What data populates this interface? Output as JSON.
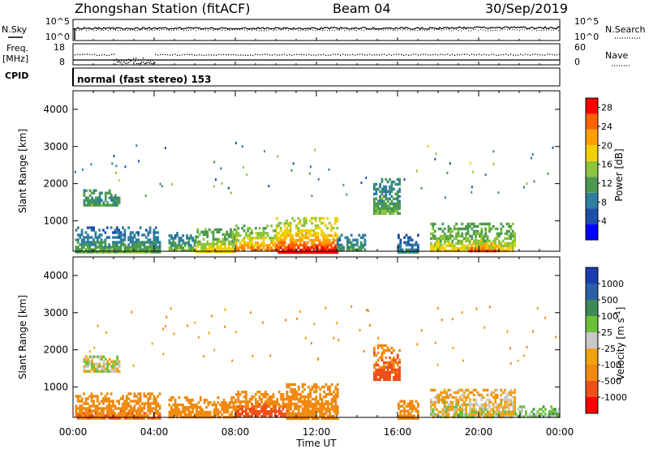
{
  "header": {
    "station": "Zhongshan Station (fitACF)",
    "beam": "Beam 04",
    "date": "30/Sep/2019"
  },
  "noise_panel": {
    "left_label": "N.Sky",
    "right_label": "N.Search",
    "left_ticks": [
      "10^5",
      "10^0"
    ],
    "right_ticks": [
      "10^5",
      "10^0"
    ]
  },
  "freq_panel": {
    "left_label_1": "Freq.",
    "left_label_2": "[MHz]",
    "left_label_3": "CPID",
    "left_ticks": [
      "18",
      "8"
    ],
    "right_label": "Nave",
    "right_ticks": [
      "60",
      "0"
    ]
  },
  "cpid_text": "normal (fast stereo) 153",
  "x_axis": {
    "ticks": [
      "00:00",
      "04:00",
      "08:00",
      "12:00",
      "16:00",
      "20:00",
      "00:00"
    ],
    "label": "Time UT"
  },
  "colors": {
    "power_scale": [
      "#0000ff",
      "#1c4eaa",
      "#2e7e9e",
      "#4c9a50",
      "#8cc43c",
      "#f0d000",
      "#ffa000",
      "#ff6000",
      "#ff0000"
    ],
    "velocity_scale": [
      "#1a3db0",
      "#2c5fa8",
      "#3c8a58",
      "#6cc038",
      "#c8c8c8",
      "#f2a20f",
      "#f08a10",
      "#f05018",
      "#ff0000"
    ]
  },
  "chart_data": [
    {
      "type": "heatmap",
      "title": "",
      "xlabel": "Time UT",
      "ylabel": "Slant Range [km]",
      "xlim": [
        0,
        24
      ],
      "ylim": [
        180,
        4500
      ],
      "yticks": [
        1000,
        2000,
        3000,
        4000
      ],
      "colorbar": {
        "label": "Power [dB]",
        "ticks": [
          "4",
          "8",
          "12",
          "16",
          "20",
          "24",
          "28"
        ],
        "range": [
          0,
          30
        ]
      },
      "blobs": [
        {
          "t0": 0.1,
          "t1": 4.3,
          "r0": 180,
          "r1": 850,
          "v": 7,
          "core": 14
        },
        {
          "t0": 0.5,
          "t1": 2.3,
          "r0": 1450,
          "r1": 1850,
          "v": 10,
          "core": 12
        },
        {
          "t0": 4.7,
          "t1": 6.0,
          "r0": 180,
          "r1": 700,
          "v": 8,
          "core": 16
        },
        {
          "t0": 6.0,
          "t1": 8.0,
          "r0": 180,
          "r1": 800,
          "v": 12,
          "core": 20
        },
        {
          "t0": 8.0,
          "t1": 10.0,
          "r0": 180,
          "r1": 900,
          "v": 14,
          "core": 26
        },
        {
          "t0": 10.0,
          "t1": 13.0,
          "r0": 180,
          "r1": 1100,
          "v": 16,
          "core": 29
        },
        {
          "t0": 13.0,
          "t1": 14.4,
          "r0": 250,
          "r1": 650,
          "v": 8,
          "core": 12
        },
        {
          "t0": 14.8,
          "t1": 16.1,
          "r0": 1200,
          "r1": 2150,
          "v": 9,
          "core": 14
        },
        {
          "t0": 16.0,
          "t1": 17.0,
          "r0": 180,
          "r1": 650,
          "v": 6,
          "core": 10
        },
        {
          "t0": 17.6,
          "t1": 21.8,
          "r0": 180,
          "r1": 950,
          "v": 12,
          "core": 20
        },
        {
          "t0": 19.5,
          "t1": 21.0,
          "r0": 180,
          "r1": 420,
          "v": 20,
          "core": 29
        }
      ]
    },
    {
      "type": "heatmap",
      "title": "",
      "xlabel": "Time UT",
      "ylabel": "Slant Range [km]",
      "xlim": [
        0,
        24
      ],
      "ylim": [
        180,
        4500
      ],
      "yticks": [
        1000,
        2000,
        3000,
        4000
      ],
      "colorbar": {
        "label": "Velocity [m s^-1]",
        "ticks": [
          "1000",
          "500",
          "100",
          "25",
          "-25",
          "-100",
          "-500",
          "-1000"
        ],
        "range": [
          -1200,
          1200
        ]
      },
      "blobs": [
        {
          "t0": 0.1,
          "t1": 4.3,
          "r0": 180,
          "r1": 850,
          "v": -300,
          "core": -500
        },
        {
          "t0": 0.5,
          "t1": 2.3,
          "r0": 1450,
          "r1": 1850,
          "v": -10,
          "core": 0
        },
        {
          "t0": 4.7,
          "t1": 8.0,
          "r0": 180,
          "r1": 750,
          "v": -200,
          "core": -300
        },
        {
          "t0": 8.0,
          "t1": 10.5,
          "r0": 180,
          "r1": 900,
          "v": -250,
          "core": -700
        },
        {
          "t0": 10.5,
          "t1": 13.0,
          "r0": 180,
          "r1": 1100,
          "v": -150,
          "core": -400
        },
        {
          "t0": 14.8,
          "t1": 16.1,
          "r0": 1200,
          "r1": 2150,
          "v": -400,
          "core": -600
        },
        {
          "t0": 16.0,
          "t1": 17.0,
          "r0": 180,
          "r1": 650,
          "v": -200,
          "core": -300
        },
        {
          "t0": 17.6,
          "t1": 21.8,
          "r0": 180,
          "r1": 950,
          "v": -80,
          "core": 0
        },
        {
          "t0": 21.8,
          "t1": 24.0,
          "r0": 180,
          "r1": 500,
          "v": 80,
          "core": 60
        }
      ]
    }
  ]
}
